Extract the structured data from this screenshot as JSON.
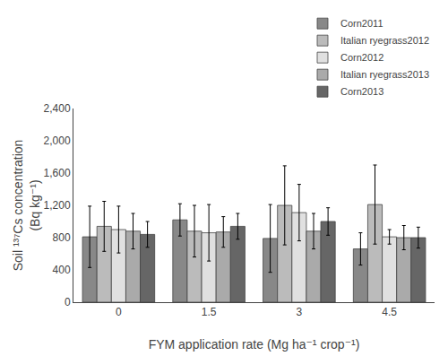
{
  "chart_data": {
    "type": "bar",
    "xlabel": "FYM application rate (Mg ha⁻¹ crop⁻¹)",
    "ylabel": "Soil ¹³⁷Cs concentration\n(Bq kg⁻¹)",
    "categories": [
      "0",
      "1.5",
      "3",
      "4.5"
    ],
    "series": [
      {
        "name": "Corn2011",
        "color": "#888888",
        "values": [
          810,
          1020,
          790,
          660
        ],
        "errors": [
          380,
          200,
          420,
          200
        ]
      },
      {
        "name": "Italian ryegrass2012",
        "color": "#bbbbbb",
        "values": [
          940,
          880,
          1200,
          1210
        ],
        "errors": [
          310,
          320,
          490,
          490
        ]
      },
      {
        "name": "Corn2012",
        "color": "#e0e0e0",
        "values": [
          900,
          860,
          1110,
          810
        ],
        "errors": [
          290,
          350,
          350,
          90
        ]
      },
      {
        "name": "Italian ryegrass2013",
        "color": "#aaaaaa",
        "values": [
          880,
          870,
          880,
          800
        ],
        "errors": [
          220,
          190,
          220,
          150
        ]
      },
      {
        "name": "Corn2013",
        "color": "#666666",
        "values": [
          840,
          940,
          1000,
          800
        ],
        "errors": [
          160,
          160,
          170,
          130
        ]
      }
    ],
    "ylim": [
      0,
      2400
    ],
    "yticks": [
      0,
      400,
      800,
      {
        "value": 1200,
        "label": "1,200"
      },
      {
        "value": 1600,
        "label": "1,600"
      },
      {
        "value": 2000,
        "label": "2,000"
      },
      {
        "value": 2400,
        "label": "2,400"
      }
    ],
    "grid": false,
    "legend": "upper right"
  }
}
